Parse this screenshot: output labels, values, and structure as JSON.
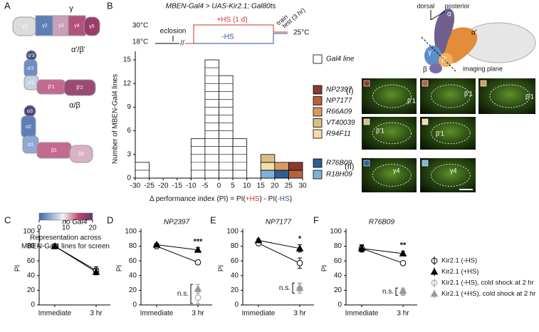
{
  "figure": {
    "panel_labels": [
      "A",
      "B",
      "C",
      "D",
      "E",
      "F"
    ],
    "panel_a": {
      "lobes": [
        {
          "name": "γ",
          "regions": [
            "γ1",
            "γ2",
            "γ3",
            "γ4",
            "γ5"
          ]
        },
        {
          "name": "α'/β'",
          "regions": [
            "α'3",
            "α'2",
            "α'1",
            "β'1",
            "β'2"
          ]
        },
        {
          "name": "α/β",
          "regions": [
            "α3",
            "α2",
            "α1",
            "β1",
            "β2"
          ]
        }
      ],
      "colorbar": {
        "lim": [
          0,
          20
        ],
        "ticks": [
          0,
          10,
          20
        ],
        "caption": [
          "Representation across",
          "MBEN-Gal4 lines for screen"
        ]
      }
    },
    "protocol": {
      "temps": [
        "30°C",
        "18°C",
        "25°C"
      ],
      "eclosion": "eclosion",
      "heat": "+HS (1 d)",
      "no_heat": "-HS",
      "train": "train",
      "test": "test (3 hr)"
    },
    "model_3d": {
      "directions": [
        "dorsal",
        "posterior"
      ],
      "lobes": [
        "α",
        "α'",
        "γ",
        "β'",
        "β"
      ],
      "plane": "imaging plane"
    },
    "images": {
      "groups": [
        "(I)",
        "(II)"
      ],
      "region_labels": [
        "β'1",
        "β'1",
        "β'1",
        "β'1",
        "β'1",
        "γ4",
        "γ4"
      ]
    },
    "line_legend": [
      {
        "label": "Kir2.1 (-HS)",
        "color": "#000000",
        "marker": "circle",
        "filled": false
      },
      {
        "label": "Kir2.1 (+HS)",
        "color": "#000000",
        "marker": "triangle",
        "filled": true
      },
      {
        "label": "Kir2.1 (-HS), cold shock at 2 hr",
        "color": "#999999",
        "marker": "circle",
        "filled": false
      },
      {
        "label": "Kir2.1 (+HS), cold shock at 2 hr",
        "color": "#999999",
        "marker": "triangle",
        "filled": true
      }
    ]
  },
  "chart_data": [
    {
      "type": "histogram",
      "title": "MBEN-Gal4 > UAS-Kir2.1; Gal80ts",
      "xlabel": [
        "Δ performance index (PI) = PI(",
        "+HS",
        ") - PI(",
        "-HS",
        ")"
      ],
      "ylabel": "Number of MBEN-Gal4 lines",
      "bins": [
        -30,
        -25,
        -20,
        -15,
        -10,
        -5,
        0,
        5,
        10,
        15,
        20,
        25,
        30
      ],
      "xlim": [
        -30,
        30
      ],
      "xticks": [
        -30,
        -25,
        -20,
        -15,
        -10,
        -5,
        0,
        5,
        10,
        15,
        20,
        25,
        30
      ],
      "ylim": [
        0,
        15
      ],
      "yticks": [
        0,
        3,
        6,
        9,
        12,
        15
      ],
      "series": [
        {
          "name": "Gal4 line",
          "color": "#ffffff",
          "values": [
            2,
            0,
            0,
            0,
            5,
            15,
            13,
            5,
            0,
            0,
            0,
            0
          ]
        },
        {
          "name": "NP2397",
          "color": "#8b3a2e",
          "values": [
            0,
            0,
            0,
            0,
            0,
            0,
            0,
            0,
            0,
            0,
            0,
            1
          ]
        },
        {
          "name": "NP7177",
          "color": "#b5633f",
          "values": [
            0,
            0,
            0,
            0,
            0,
            0,
            0,
            0,
            0,
            0,
            0,
            1
          ]
        },
        {
          "name": "R66A09",
          "color": "#d99a5e",
          "values": [
            0,
            0,
            0,
            0,
            0,
            0,
            0,
            0,
            0,
            0,
            1,
            0
          ]
        },
        {
          "name": "VT40039",
          "color": "#dcbd88",
          "values": [
            0,
            0,
            0,
            0,
            0,
            0,
            0,
            0,
            0,
            1,
            0,
            0
          ]
        },
        {
          "name": "R94F11",
          "color": "#f2dfa8",
          "values": [
            0,
            0,
            0,
            0,
            0,
            0,
            0,
            0,
            0,
            1,
            0,
            0
          ]
        },
        {
          "name": "R76B09",
          "color": "#2d5f96",
          "values": [
            0,
            0,
            0,
            0,
            0,
            0,
            0,
            0,
            0,
            0,
            1,
            0
          ]
        },
        {
          "name": "R18H09",
          "color": "#7fb2d6",
          "values": [
            0,
            0,
            0,
            0,
            0,
            0,
            0,
            0,
            0,
            1,
            0,
            0
          ]
        }
      ]
    },
    {
      "type": "line",
      "title": "no Gal4",
      "ylabel": "PI",
      "categories": [
        "Immediate",
        "3 hr"
      ],
      "ylim": [
        0,
        100
      ],
      "yticks": [
        0,
        20,
        40,
        60,
        80,
        100
      ],
      "series": [
        {
          "values": [
            80,
            47
          ],
          "errors": [
            3,
            5
          ],
          "color": "#000000",
          "marker": "circle",
          "filled": false
        },
        {
          "values": [
            80,
            45
          ],
          "errors": [
            3,
            4
          ],
          "color": "#000000",
          "marker": "triangle",
          "filled": true
        }
      ]
    },
    {
      "type": "line",
      "title": "NP2397",
      "ylabel": "PI",
      "categories": [
        "Immediate",
        "3 hr"
      ],
      "ylim": [
        0,
        100
      ],
      "yticks": [
        0,
        20,
        40,
        60,
        80,
        100
      ],
      "series": [
        {
          "values": [
            80,
            58
          ],
          "errors": [
            3,
            3
          ],
          "color": "#000000",
          "marker": "circle",
          "filled": false
        },
        {
          "values": [
            82,
            75
          ],
          "errors": [
            2,
            3
          ],
          "color": "#000000",
          "marker": "triangle",
          "filled": true
        },
        {
          "values": [
            null,
            10
          ],
          "errors": [
            null,
            8
          ],
          "color": "#999999",
          "marker": "circle",
          "filled": false
        },
        {
          "values": [
            null,
            22
          ],
          "errors": [
            null,
            6
          ],
          "color": "#999999",
          "marker": "triangle",
          "filled": true
        }
      ],
      "significance": "***",
      "cold_shock_significance": "n.s."
    },
    {
      "type": "line",
      "title": "NP7177",
      "ylabel": "PI",
      "categories": [
        "Immediate",
        "3 hr"
      ],
      "ylim": [
        0,
        100
      ],
      "yticks": [
        0,
        20,
        40,
        60,
        80,
        100
      ],
      "series": [
        {
          "values": [
            84,
            57
          ],
          "errors": [
            3,
            7
          ],
          "color": "#000000",
          "marker": "circle",
          "filled": false
        },
        {
          "values": [
            88,
            77
          ],
          "errors": [
            2,
            5
          ],
          "color": "#000000",
          "marker": "triangle",
          "filled": true
        },
        {
          "values": [
            null,
            22
          ],
          "errors": [
            null,
            6
          ],
          "color": "#999999",
          "marker": "circle",
          "filled": false
        },
        {
          "values": [
            null,
            23
          ],
          "errors": [
            null,
            7
          ],
          "color": "#999999",
          "marker": "triangle",
          "filled": true
        }
      ],
      "significance": "*",
      "cold_shock_significance": "n.s."
    },
    {
      "type": "line",
      "title": "R76B09",
      "ylabel": "PI",
      "categories": [
        "Immediate",
        "3 hr"
      ],
      "ylim": [
        0,
        100
      ],
      "yticks": [
        0,
        20,
        40,
        60,
        80,
        100
      ],
      "series": [
        {
          "values": [
            77,
            57
          ],
          "errors": [
            4,
            2
          ],
          "color": "#000000",
          "marker": "circle",
          "filled": false
        },
        {
          "values": [
            77,
            70
          ],
          "errors": [
            5,
            3
          ],
          "color": "#000000",
          "marker": "triangle",
          "filled": true
        },
        {
          "values": [
            null,
            17
          ],
          "errors": [
            null,
            4
          ],
          "color": "#999999",
          "marker": "circle",
          "filled": false
        },
        {
          "values": [
            null,
            19
          ],
          "errors": [
            null,
            4
          ],
          "color": "#999999",
          "marker": "triangle",
          "filled": true
        }
      ],
      "significance": "**",
      "cold_shock_significance": "n.s."
    }
  ]
}
